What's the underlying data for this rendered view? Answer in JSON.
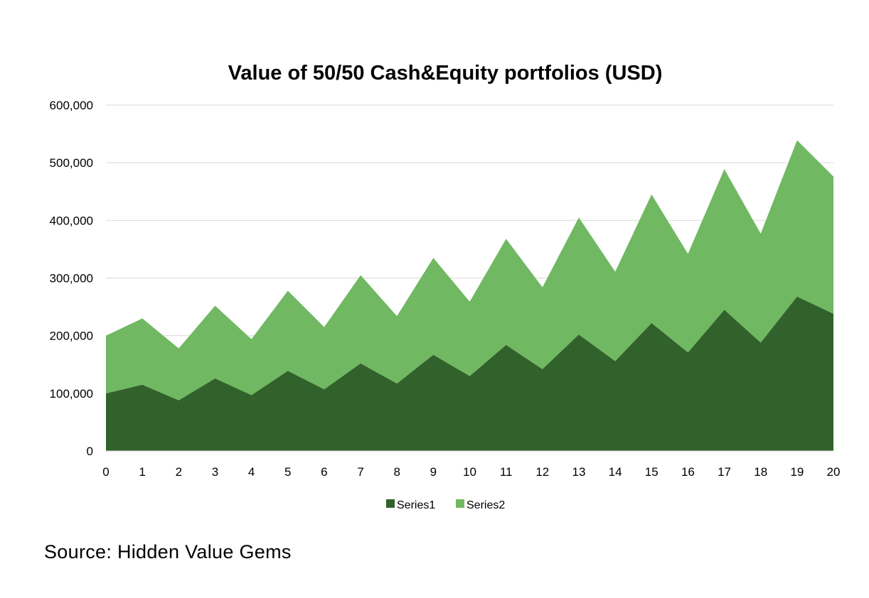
{
  "chart_data": {
    "type": "area",
    "stacked": true,
    "title": "Value of 50/50 Cash&Equity portfolios (USD)",
    "xlabel": "",
    "ylabel": "",
    "x": [
      0,
      1,
      2,
      3,
      4,
      5,
      6,
      7,
      8,
      9,
      10,
      11,
      12,
      13,
      14,
      15,
      16,
      17,
      18,
      19,
      20
    ],
    "ylim": [
      0,
      600000
    ],
    "yticks": [
      0,
      100000,
      200000,
      300000,
      400000,
      500000,
      600000
    ],
    "ytick_labels": [
      "0",
      "100,000",
      "200,000",
      "300,000",
      "400,000",
      "500,000",
      "600,000"
    ],
    "grid": true,
    "legend_position": "bottom",
    "series": [
      {
        "name": "Series1",
        "color": "#32622b",
        "values": [
          100000,
          115000,
          88000,
          126000,
          97000,
          139000,
          107000,
          152000,
          117000,
          167000,
          130000,
          184000,
          142000,
          202000,
          156000,
          222000,
          171000,
          245000,
          188000,
          268000,
          238000
        ]
      },
      {
        "name": "Series2",
        "color": "#70b862",
        "values": [
          100000,
          115000,
          90000,
          126000,
          97000,
          139000,
          108000,
          153000,
          117000,
          168000,
          129000,
          184000,
          142000,
          203000,
          155000,
          223000,
          171000,
          244000,
          189000,
          271000,
          238000
        ]
      }
    ]
  },
  "source": "Source: Hidden Value Gems"
}
